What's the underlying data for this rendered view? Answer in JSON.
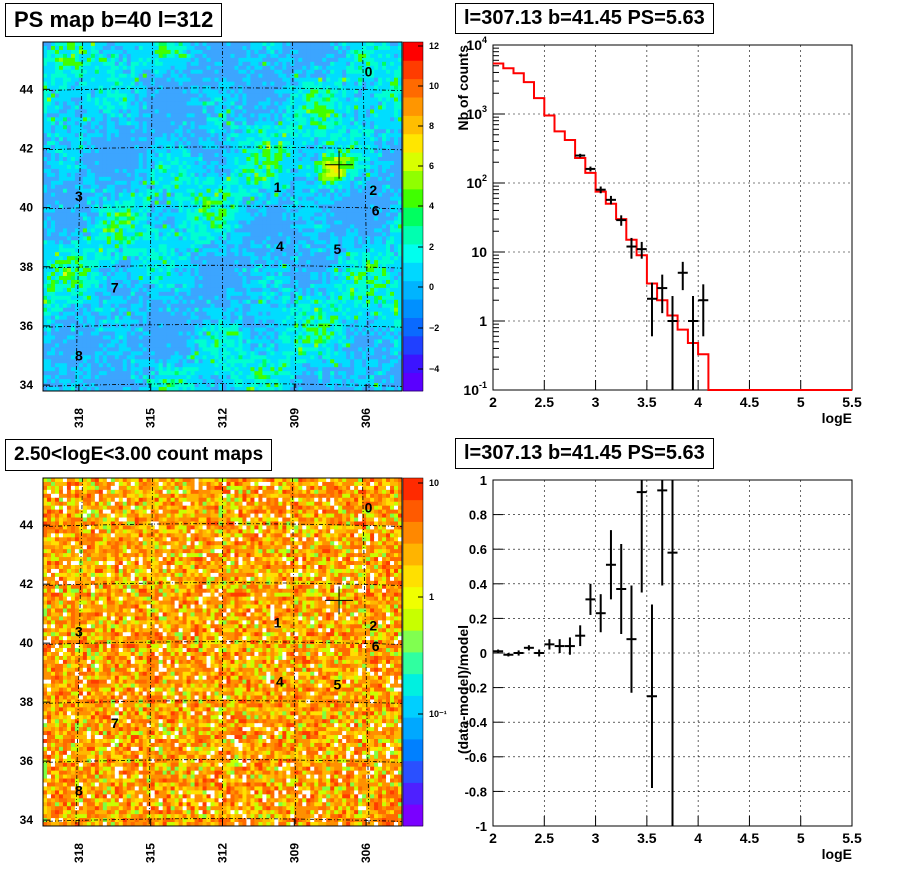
{
  "panels": {
    "ps_map": {
      "title": "PS map b=40 l=312",
      "colorbar": {
        "ticks": [
          "12",
          "10",
          "8",
          "6",
          "4",
          "2",
          "0",
          "−2",
          "−4"
        ]
      },
      "y_ticks": [
        "44",
        "42",
        "40",
        "38",
        "36",
        "34"
      ],
      "x_ticks": [
        "318",
        "315",
        "312",
        "309",
        "306"
      ],
      "sources": [
        "0",
        "1",
        "2",
        "3",
        "4",
        "5",
        "6",
        "7",
        "8"
      ]
    },
    "counts_spectrum": {
      "title": "l=307.13 b=41.45 PS=5.63",
      "ylabel": "Nb of counts",
      "xlabel": "logE"
    },
    "count_map": {
      "title": "2.50<logE<3.00 count maps",
      "colorbar": {
        "ticks": [
          "10",
          "1",
          "10⁻¹"
        ]
      },
      "y_ticks": [
        "44",
        "42",
        "40",
        "38",
        "36",
        "34"
      ],
      "x_ticks": [
        "318",
        "315",
        "312",
        "309",
        "306"
      ],
      "sources": [
        "0",
        "1",
        "2",
        "3",
        "4",
        "5",
        "6",
        "7",
        "8"
      ]
    },
    "residuals": {
      "title": "l=307.13 b=41.45 PS=5.63",
      "ylabel": "(data-model)/model",
      "xlabel": "logE"
    }
  },
  "chart_data": [
    {
      "type": "heatmap",
      "title": "PS map b=40 l=312",
      "xlabel": "",
      "ylabel": "",
      "xlim": [
        319.5,
        304.5
      ],
      "ylim": [
        33.8,
        45.6
      ],
      "x_ticks": [
        318,
        315,
        312,
        309,
        306
      ],
      "y_ticks": [
        44,
        42,
        40,
        38,
        36,
        34
      ],
      "z_range": [
        -5,
        12
      ],
      "colorbar_ticks": [
        12,
        10,
        8,
        6,
        4,
        2,
        0,
        -2,
        -4
      ],
      "sources": [
        {
          "label": "0",
          "l": 305.9,
          "b": 44.6
        },
        {
          "label": "1",
          "l": 309.7,
          "b": 40.7
        },
        {
          "label": "2",
          "l": 305.7,
          "b": 40.6
        },
        {
          "label": "3",
          "l": 318.0,
          "b": 40.4
        },
        {
          "label": "4",
          "l": 309.6,
          "b": 38.7
        },
        {
          "label": "5",
          "l": 307.2,
          "b": 38.6
        },
        {
          "label": "6",
          "l": 305.6,
          "b": 39.9
        },
        {
          "label": "7",
          "l": 316.5,
          "b": 37.3
        },
        {
          "label": "8",
          "l": 318.0,
          "b": 35.0
        }
      ],
      "marker": {
        "l": 307.13,
        "b": 41.45
      }
    },
    {
      "type": "line",
      "title": "l=307.13 b=41.45 PS=5.63",
      "xlabel": "logE",
      "ylabel": "Nb of counts",
      "xlim": [
        2,
        5.5
      ],
      "ylim": [
        0.1,
        10000
      ],
      "yscale": "log",
      "grid": true,
      "x_ticks": [
        2,
        2.5,
        3,
        3.5,
        4,
        4.5,
        5,
        5.5
      ],
      "y_ticks": [
        0.1,
        1,
        10,
        100,
        1000,
        10000
      ],
      "model_edges": [
        2.0,
        2.1,
        2.2,
        2.3,
        2.4,
        2.5,
        2.6,
        2.7,
        2.8,
        2.9,
        3.0,
        3.1,
        3.2,
        3.3,
        3.4,
        3.5,
        3.6,
        3.7,
        3.8,
        3.9,
        4.0,
        4.1,
        5.5
      ],
      "model_values": [
        5400,
        4600,
        3900,
        2900,
        1700,
        950,
        560,
        420,
        230,
        140,
        75,
        50,
        30,
        15,
        9,
        3.5,
        2.0,
        1.2,
        0.75,
        0.48,
        0.33,
        0.1
      ],
      "data_points": [
        {
          "x": 2.85,
          "y": 250,
          "err_lo": 15,
          "err_hi": 15
        },
        {
          "x": 2.95,
          "y": 160,
          "err_lo": 13,
          "err_hi": 13
        },
        {
          "x": 3.05,
          "y": 80,
          "err_lo": 9,
          "err_hi": 9
        },
        {
          "x": 3.15,
          "y": 57,
          "err_lo": 8,
          "err_hi": 8
        },
        {
          "x": 3.25,
          "y": 29,
          "err_lo": 5,
          "err_hi": 5
        },
        {
          "x": 3.35,
          "y": 12,
          "err_lo": 4,
          "err_hi": 4
        },
        {
          "x": 3.45,
          "y": 11,
          "err_lo": 3,
          "err_hi": 3
        },
        {
          "x": 3.55,
          "y": 2.1,
          "err_lo": 1.5,
          "err_hi": 1.5
        },
        {
          "x": 3.65,
          "y": 3,
          "err_lo": 1.7,
          "err_hi": 1.7
        },
        {
          "x": 3.75,
          "y": 1,
          "err_lo": 0.9,
          "err_hi": 1.3
        },
        {
          "x": 3.85,
          "y": 5,
          "err_lo": 2.2,
          "err_hi": 2.2
        },
        {
          "x": 3.95,
          "y": 1,
          "err_lo": 0.9,
          "err_hi": 1.3
        },
        {
          "x": 4.05,
          "y": 2,
          "err_lo": 1.4,
          "err_hi": 1.4
        }
      ]
    },
    {
      "type": "heatmap",
      "title": "2.50<logE<3.00 count maps",
      "xlabel": "",
      "ylabel": "",
      "xlim": [
        319.5,
        304.5
      ],
      "ylim": [
        33.8,
        45.6
      ],
      "x_ticks": [
        318,
        315,
        312,
        309,
        306
      ],
      "y_ticks": [
        44,
        42,
        40,
        38,
        36,
        34
      ],
      "zscale": "log",
      "colorbar_ticks": [
        "10",
        "1",
        "10⁻¹"
      ],
      "sources": [
        {
          "label": "0",
          "l": 305.9,
          "b": 44.6
        },
        {
          "label": "1",
          "l": 309.7,
          "b": 40.7
        },
        {
          "label": "2",
          "l": 305.7,
          "b": 40.6
        },
        {
          "label": "3",
          "l": 318.0,
          "b": 40.4
        },
        {
          "label": "4",
          "l": 309.6,
          "b": 38.7
        },
        {
          "label": "5",
          "l": 307.2,
          "b": 38.6
        },
        {
          "label": "6",
          "l": 305.6,
          "b": 39.9
        },
        {
          "label": "7",
          "l": 316.5,
          "b": 37.3
        },
        {
          "label": "8",
          "l": 318.0,
          "b": 35.0
        }
      ],
      "marker": {
        "l": 307.13,
        "b": 41.45
      }
    },
    {
      "type": "scatter",
      "title": "l=307.13 b=41.45 PS=5.63",
      "xlabel": "logE",
      "ylabel": "(data-model)/model",
      "xlim": [
        2,
        5.5
      ],
      "ylim": [
        -1,
        1
      ],
      "grid": true,
      "x_ticks": [
        2,
        2.5,
        3,
        3.5,
        4,
        4.5,
        5,
        5.5
      ],
      "y_ticks": [
        -1,
        -0.8,
        -0.6,
        -0.4,
        -0.2,
        0,
        0.2,
        0.4,
        0.6,
        0.8,
        1
      ],
      "points": [
        {
          "x": 2.05,
          "y": 0.01,
          "err": 0.01
        },
        {
          "x": 2.15,
          "y": -0.01,
          "err": 0.01
        },
        {
          "x": 2.25,
          "y": 0.0,
          "err": 0.015
        },
        {
          "x": 2.35,
          "y": 0.03,
          "err": 0.015
        },
        {
          "x": 2.45,
          "y": 0.0,
          "err": 0.02
        },
        {
          "x": 2.55,
          "y": 0.05,
          "err": 0.03
        },
        {
          "x": 2.65,
          "y": 0.04,
          "err": 0.04
        },
        {
          "x": 2.75,
          "y": 0.04,
          "err": 0.05
        },
        {
          "x": 2.85,
          "y": 0.1,
          "err": 0.06
        },
        {
          "x": 2.95,
          "y": 0.31,
          "err": 0.09
        },
        {
          "x": 3.05,
          "y": 0.23,
          "err": 0.11
        },
        {
          "x": 3.15,
          "y": 0.51,
          "err": 0.2
        },
        {
          "x": 3.25,
          "y": 0.37,
          "err": 0.26
        },
        {
          "x": 3.35,
          "y": 0.08,
          "err": 0.31
        },
        {
          "x": 3.45,
          "y": 0.93,
          "err": 0.58
        },
        {
          "x": 3.55,
          "y": -0.25,
          "err": 0.53
        },
        {
          "x": 3.65,
          "y": 0.94,
          "err": 0.55
        },
        {
          "x": 3.75,
          "y": 0.58,
          "err": 1.6
        }
      ]
    }
  ]
}
